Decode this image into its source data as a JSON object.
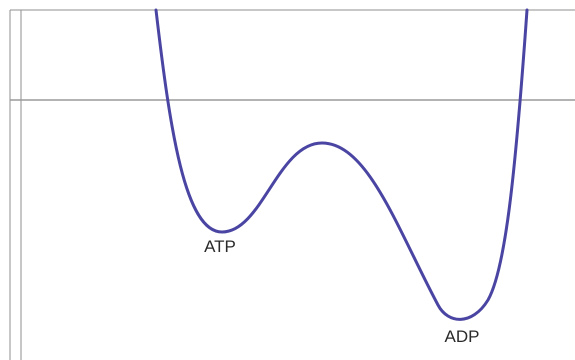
{
  "diagram": {
    "labels": {
      "atp": "ATP",
      "adp": "ADP"
    },
    "colors": {
      "curve": "#4a45a2",
      "frame": "#8f8f8f",
      "baseline": "#9a9a9a",
      "text": "#2a2a2a"
    }
  }
}
